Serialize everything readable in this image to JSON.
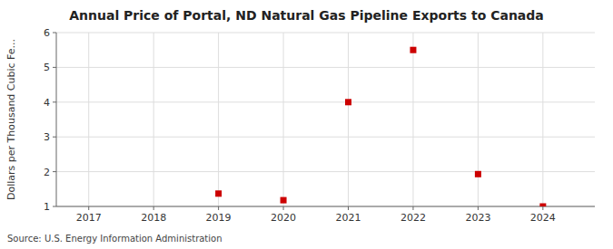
{
  "chart_data": {
    "type": "scatter",
    "title": "Annual Price of Portal, ND Natural Gas Pipeline Exports to Canada",
    "ylabel": "Dollars per Thousand Cubic Fe...",
    "annotations": [
      "Source: U.S. Energy Information Administration"
    ],
    "x": [
      2019,
      2020,
      2021,
      2022,
      2023,
      2024
    ],
    "values": [
      1.37,
      1.18,
      4.0,
      5.5,
      1.93,
      1.0
    ],
    "color": "#cc0000",
    "marker": "square",
    "xlim": [
      2016.5,
      2024.8
    ],
    "ylim": [
      1,
      6
    ],
    "xticks": [
      2017,
      2018,
      2019,
      2020,
      2021,
      2022,
      2023,
      2024
    ],
    "yticks": [
      1,
      2,
      3,
      4,
      5,
      6
    ],
    "grid": true
  }
}
